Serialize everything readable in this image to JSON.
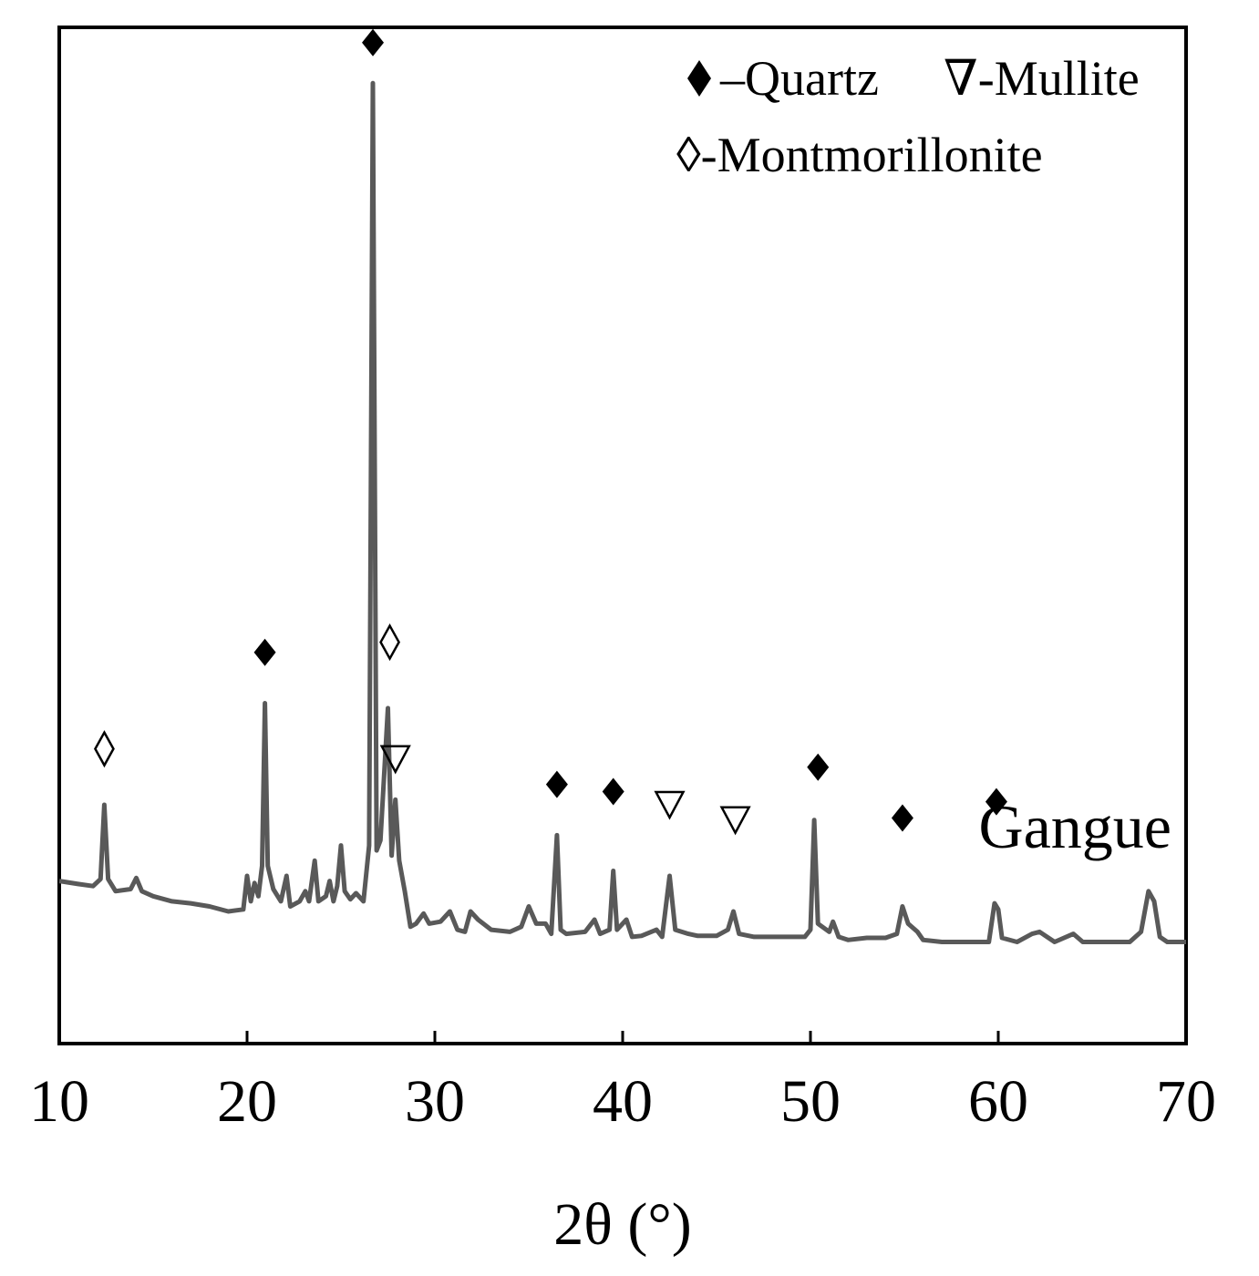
{
  "chart_data": {
    "type": "line",
    "title": "",
    "xlabel": "2θ (°)",
    "ylabel": "",
    "xlim": [
      10,
      70
    ],
    "ylim": [
      0,
      1000
    ],
    "x_ticks": [
      "10",
      "20",
      "30",
      "40",
      "50",
      "60",
      "70"
    ],
    "y_ticks_shown": false,
    "grid": false,
    "legend_position": "top-right",
    "legend": [
      {
        "marker": "filled-diamond",
        "label": "–Quartz"
      },
      {
        "marker": "open-triangle-down",
        "label": "∇-Mullite"
      },
      {
        "marker": "open-diamond",
        "label": "◊-Montmorillonite"
      }
    ],
    "series": [
      {
        "name": "Gangue",
        "color": "#595959",
        "points": [
          [
            10,
            160
          ],
          [
            11,
            157
          ],
          [
            11.8,
            155
          ],
          [
            12.2,
            162
          ],
          [
            12.4,
            235
          ],
          [
            12.6,
            162
          ],
          [
            13,
            150
          ],
          [
            13.8,
            152
          ],
          [
            14.1,
            163
          ],
          [
            14.4,
            150
          ],
          [
            15,
            145
          ],
          [
            16,
            140
          ],
          [
            17,
            138
          ],
          [
            18,
            135
          ],
          [
            19,
            130
          ],
          [
            19.8,
            132
          ],
          [
            20,
            165
          ],
          [
            20.2,
            140
          ],
          [
            20.4,
            158
          ],
          [
            20.6,
            145
          ],
          [
            20.8,
            175
          ],
          [
            20.95,
            335
          ],
          [
            21.1,
            175
          ],
          [
            21.4,
            152
          ],
          [
            21.8,
            140
          ],
          [
            22.1,
            165
          ],
          [
            22.3,
            135
          ],
          [
            22.8,
            140
          ],
          [
            23.1,
            150
          ],
          [
            23.3,
            140
          ],
          [
            23.6,
            180
          ],
          [
            23.8,
            140
          ],
          [
            24.2,
            145
          ],
          [
            24.4,
            160
          ],
          [
            24.6,
            140
          ],
          [
            24.8,
            155
          ],
          [
            25.0,
            195
          ],
          [
            25.2,
            150
          ],
          [
            25.5,
            142
          ],
          [
            25.8,
            148
          ],
          [
            26.2,
            140
          ],
          [
            26.5,
            195
          ],
          [
            26.7,
            945
          ],
          [
            26.9,
            190
          ],
          [
            27.1,
            200
          ],
          [
            27.5,
            330
          ],
          [
            27.7,
            185
          ],
          [
            27.9,
            240
          ],
          [
            28.1,
            180
          ],
          [
            28.4,
            150
          ],
          [
            28.7,
            115
          ],
          [
            29,
            118
          ],
          [
            29.4,
            128
          ],
          [
            29.7,
            118
          ],
          [
            30.3,
            120
          ],
          [
            30.8,
            130
          ],
          [
            31.2,
            112
          ],
          [
            31.6,
            110
          ],
          [
            31.9,
            130
          ],
          [
            32.3,
            122
          ],
          [
            33,
            112
          ],
          [
            34,
            110
          ],
          [
            34.6,
            115
          ],
          [
            35.0,
            135
          ],
          [
            35.4,
            118
          ],
          [
            35.9,
            118
          ],
          [
            36.2,
            108
          ],
          [
            36.5,
            205
          ],
          [
            36.7,
            112
          ],
          [
            37,
            108
          ],
          [
            38,
            110
          ],
          [
            38.5,
            122
          ],
          [
            38.8,
            108
          ],
          [
            39.3,
            112
          ],
          [
            39.5,
            170
          ],
          [
            39.7,
            112
          ],
          [
            40.2,
            122
          ],
          [
            40.5,
            105
          ],
          [
            41,
            106
          ],
          [
            41.8,
            112
          ],
          [
            42.1,
            105
          ],
          [
            42.5,
            165
          ],
          [
            42.8,
            112
          ],
          [
            43.5,
            108
          ],
          [
            44,
            106
          ],
          [
            45,
            106
          ],
          [
            45.6,
            112
          ],
          [
            45.9,
            130
          ],
          [
            46.2,
            108
          ],
          [
            47,
            105
          ],
          [
            48,
            105
          ],
          [
            49,
            105
          ],
          [
            49.7,
            105
          ],
          [
            50.0,
            112
          ],
          [
            50.2,
            220
          ],
          [
            50.4,
            118
          ],
          [
            51,
            110
          ],
          [
            51.2,
            120
          ],
          [
            51.5,
            105
          ],
          [
            52,
            102
          ],
          [
            53,
            104
          ],
          [
            54,
            104
          ],
          [
            54.6,
            108
          ],
          [
            54.9,
            135
          ],
          [
            55.2,
            118
          ],
          [
            55.7,
            110
          ],
          [
            56,
            102
          ],
          [
            57,
            100
          ],
          [
            58,
            100
          ],
          [
            59.5,
            100
          ],
          [
            59.8,
            138
          ],
          [
            60.0,
            132
          ],
          [
            60.2,
            104
          ],
          [
            61,
            100
          ],
          [
            61.8,
            108
          ],
          [
            62.2,
            110
          ],
          [
            63,
            100
          ],
          [
            64,
            108
          ],
          [
            64.5,
            100
          ],
          [
            65,
            100
          ],
          [
            66,
            100
          ],
          [
            67,
            100
          ],
          [
            67.6,
            110
          ],
          [
            68.0,
            150
          ],
          [
            68.3,
            140
          ],
          [
            68.6,
            105
          ],
          [
            69,
            100
          ],
          [
            70,
            100
          ]
        ]
      }
    ],
    "annotations": [
      {
        "x": 12.4,
        "y": 290,
        "marker": "open-diamond"
      },
      {
        "x": 20.95,
        "y": 385,
        "marker": "filled-diamond"
      },
      {
        "x": 26.7,
        "y": 985,
        "marker": "filled-diamond"
      },
      {
        "x": 27.6,
        "y": 395,
        "marker": "open-diamond"
      },
      {
        "x": 27.9,
        "y": 280,
        "marker": "open-triangle-down"
      },
      {
        "x": 36.5,
        "y": 255,
        "marker": "filled-diamond"
      },
      {
        "x": 39.5,
        "y": 248,
        "marker": "filled-diamond"
      },
      {
        "x": 42.5,
        "y": 235,
        "marker": "open-triangle-down"
      },
      {
        "x": 46.0,
        "y": 220,
        "marker": "open-triangle-down"
      },
      {
        "x": 50.4,
        "y": 272,
        "marker": "filled-diamond"
      },
      {
        "x": 54.9,
        "y": 222,
        "marker": "filled-diamond"
      },
      {
        "x": 59.9,
        "y": 238,
        "marker": "filled-diamond"
      }
    ],
    "sample_label": "Gangue"
  }
}
